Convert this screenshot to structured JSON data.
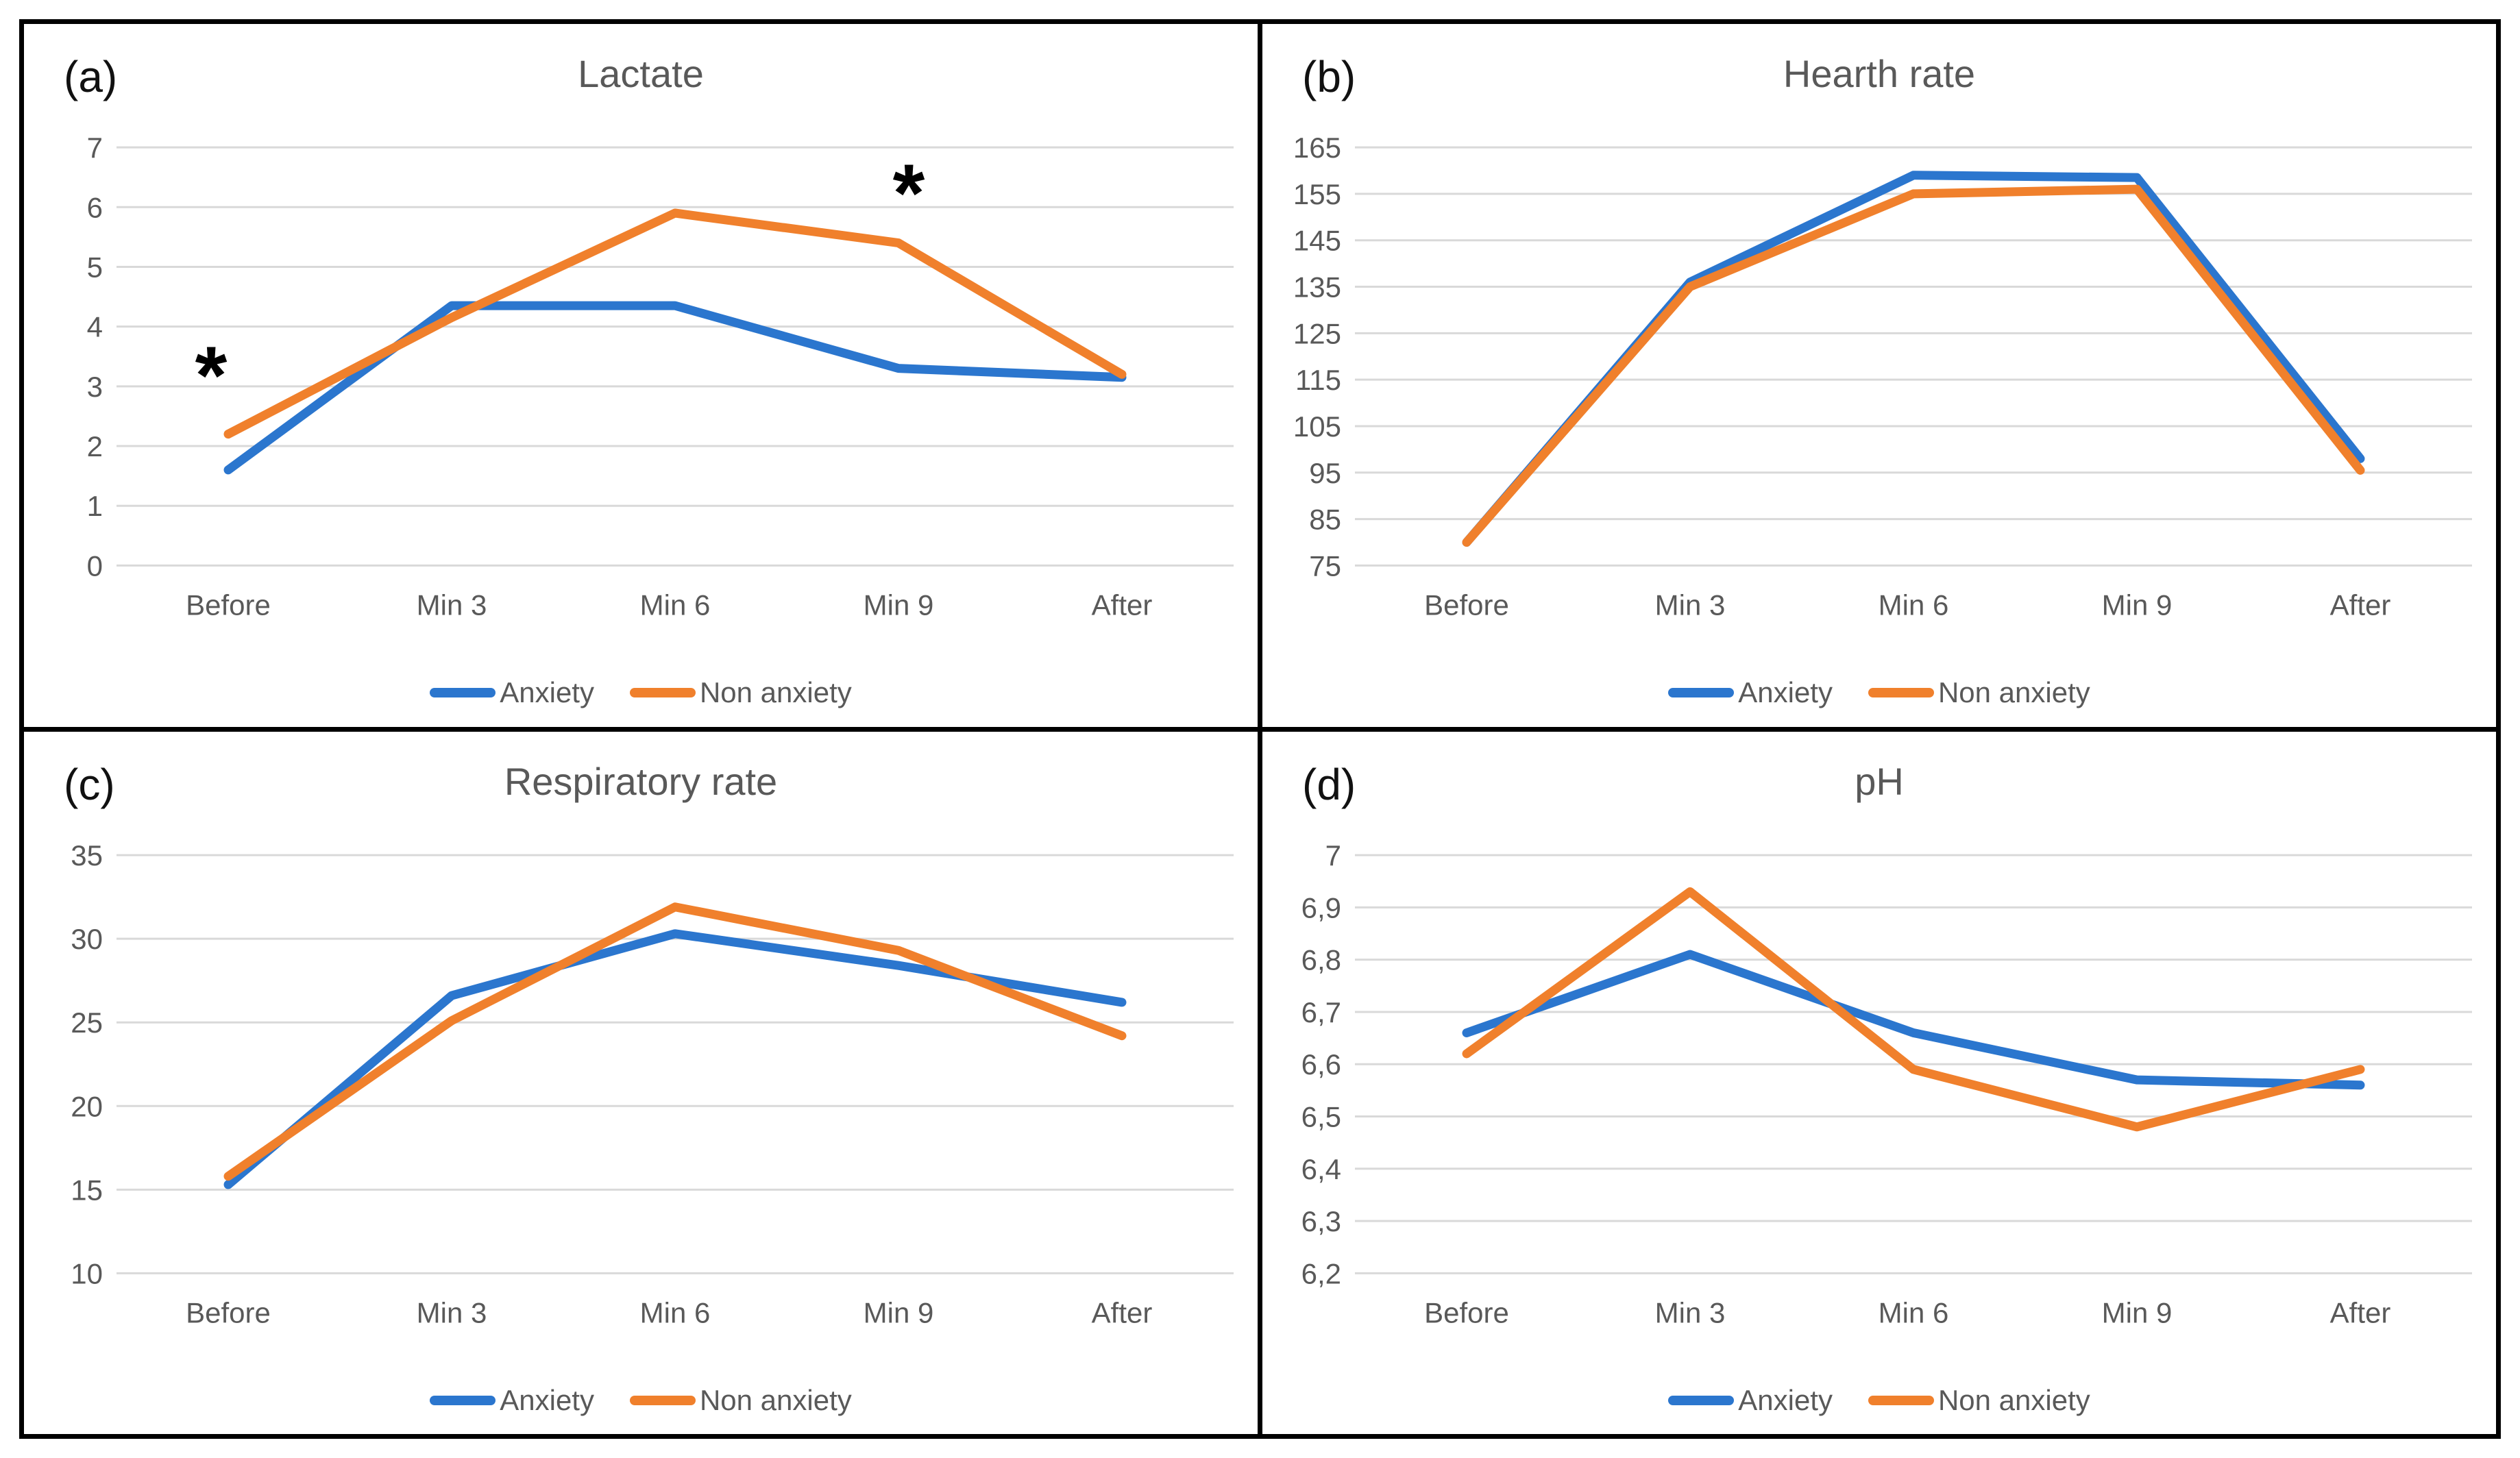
{
  "colors": {
    "anxiety": "#2B76CE",
    "non_anxiety": "#F0802C",
    "grid": "#D9D9D9",
    "text": "#595959",
    "border": "#000000",
    "annotation": "#000000"
  },
  "chart_data": [
    {
      "id": "a",
      "panel_label": "(a)",
      "title": "Lactate",
      "type": "line",
      "categories": [
        "Before",
        "Min 3",
        "Min 6",
        "Min 9",
        "After"
      ],
      "series": [
        {
          "name": "Anxiety",
          "color_key": "anxiety",
          "values": [
            1.6,
            4.35,
            4.35,
            3.3,
            3.15
          ]
        },
        {
          "name": "Non anxiety",
          "color_key": "non_anxiety",
          "values": [
            2.2,
            4.15,
            5.9,
            5.4,
            3.2
          ]
        }
      ],
      "ylim": [
        0,
        7
      ],
      "ystep": 1,
      "decimal_comma": false,
      "grid": true,
      "legend_position": "bottom",
      "annotations": [
        {
          "text": "*",
          "category_index": 0,
          "value": 3.4,
          "dx": -25
        },
        {
          "text": "*",
          "category_index": 3,
          "value": 6.45,
          "dx": 15
        }
      ]
    },
    {
      "id": "b",
      "panel_label": "(b)",
      "title": "Hearth rate",
      "type": "line",
      "categories": [
        "Before",
        "Min 3",
        "Min 6",
        "Min 9",
        "After"
      ],
      "series": [
        {
          "name": "Anxiety",
          "color_key": "anxiety",
          "values": [
            80,
            136,
            159,
            158.5,
            98
          ]
        },
        {
          "name": "Non anxiety",
          "color_key": "non_anxiety",
          "values": [
            80,
            135,
            155,
            156,
            95.5
          ]
        }
      ],
      "ylim": [
        75,
        165
      ],
      "ystep": 10,
      "decimal_comma": false,
      "grid": true,
      "legend_position": "bottom",
      "annotations": []
    },
    {
      "id": "c",
      "panel_label": "(c)",
      "title": "Respiratory rate",
      "type": "line",
      "categories": [
        "Before",
        "Min 3",
        "Min 6",
        "Min 9",
        "After"
      ],
      "series": [
        {
          "name": "Anxiety",
          "color_key": "anxiety",
          "values": [
            15.3,
            26.6,
            30.3,
            28.4,
            26.2
          ]
        },
        {
          "name": "Non anxiety",
          "color_key": "non_anxiety",
          "values": [
            15.8,
            25.1,
            31.9,
            29.3,
            24.2
          ]
        }
      ],
      "ylim": [
        10,
        35
      ],
      "ystep": 5,
      "decimal_comma": false,
      "grid": true,
      "legend_position": "bottom",
      "annotations": []
    },
    {
      "id": "d",
      "panel_label": "(d)",
      "title": "pH",
      "type": "line",
      "categories": [
        "Before",
        "Min 3",
        "Min 6",
        "Min 9",
        "After"
      ],
      "series": [
        {
          "name": "Anxiety",
          "color_key": "anxiety",
          "values": [
            6.66,
            6.81,
            6.66,
            6.57,
            6.56
          ]
        },
        {
          "name": "Non anxiety",
          "color_key": "non_anxiety",
          "values": [
            6.62,
            6.93,
            6.59,
            6.48,
            6.59
          ]
        }
      ],
      "ylim": [
        6.2,
        7
      ],
      "ystep": 0.1,
      "decimal_comma": true,
      "grid": true,
      "legend_position": "bottom",
      "annotations": []
    }
  ]
}
